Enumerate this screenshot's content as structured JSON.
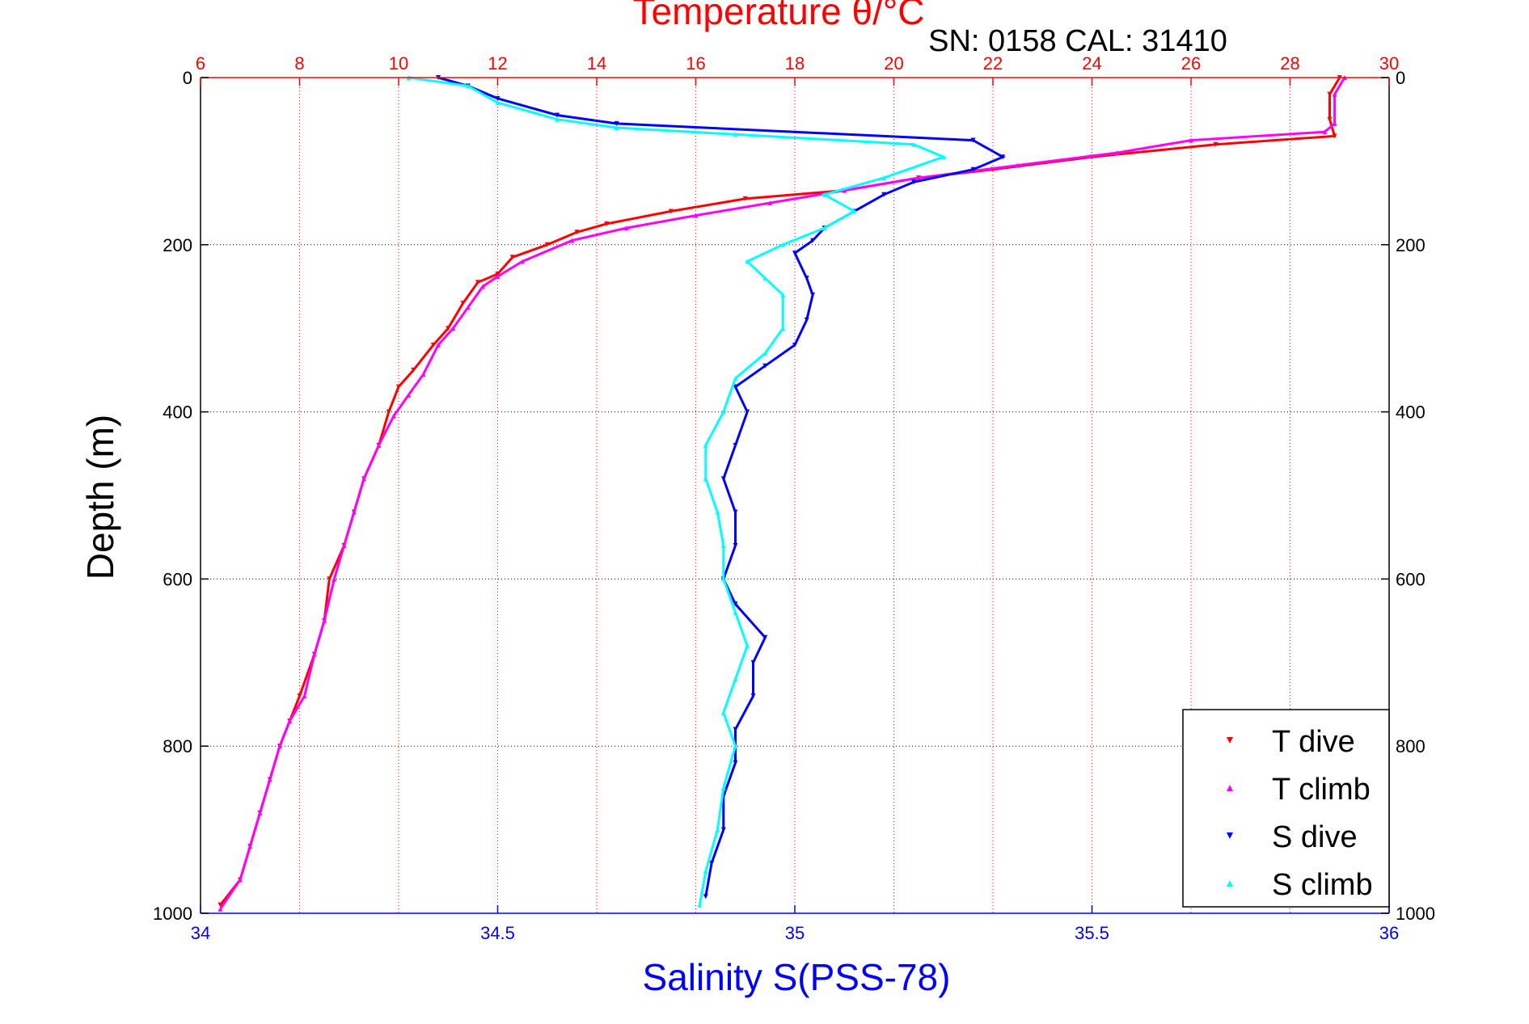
{
  "chart_data": {
    "type": "scatter",
    "title": "Temperature θ/°C",
    "annotation": "SN: 0158  CAL: 31410",
    "ylabel": "Depth (m)",
    "xlabel_bottom": "Salinity S(PSS-78)",
    "xlabel_top": "Temperature θ/°C",
    "ylim": [
      1000,
      0
    ],
    "y_ticks": [
      "0",
      "200",
      "400",
      "600",
      "800",
      "1000"
    ],
    "y_tick_values": [
      0,
      200,
      400,
      600,
      800,
      1000
    ],
    "x_bottom": {
      "label": "Salinity S(PSS-78)",
      "lim": [
        34,
        36
      ],
      "ticks": [
        "34",
        "34.5",
        "35",
        "35.5",
        "36"
      ],
      "tick_values": [
        34,
        34.5,
        35,
        35.5,
        36
      ],
      "color": "#0000ff"
    },
    "x_top": {
      "label": "Temperature θ/°C",
      "lim": [
        6,
        30
      ],
      "ticks": [
        "6",
        "8",
        "10",
        "12",
        "14",
        "16",
        "18",
        "20",
        "22",
        "24",
        "26",
        "28",
        "30"
      ],
      "tick_values": [
        6,
        8,
        10,
        12,
        14,
        16,
        18,
        20,
        22,
        24,
        26,
        28,
        30
      ],
      "color": "#ff0000"
    },
    "grid": true,
    "legend_position": "bottom-right",
    "series": [
      {
        "name": "T dive",
        "axis": "temperature",
        "color": "#ff0000",
        "marker": "triangle-down",
        "points": [
          [
            29.0,
            0
          ],
          [
            28.8,
            20
          ],
          [
            28.8,
            50
          ],
          [
            28.9,
            70
          ],
          [
            26.5,
            80
          ],
          [
            24.0,
            95
          ],
          [
            22.0,
            110
          ],
          [
            20.5,
            120
          ],
          [
            19.0,
            135
          ],
          [
            17.0,
            145
          ],
          [
            15.5,
            160
          ],
          [
            14.2,
            175
          ],
          [
            13.6,
            185
          ],
          [
            13.0,
            200
          ],
          [
            12.3,
            215
          ],
          [
            12.0,
            235
          ],
          [
            11.6,
            245
          ],
          [
            11.3,
            270
          ],
          [
            11.0,
            300
          ],
          [
            10.7,
            320
          ],
          [
            10.3,
            350
          ],
          [
            10.0,
            370
          ],
          [
            9.8,
            400
          ],
          [
            9.6,
            440
          ],
          [
            9.3,
            480
          ],
          [
            9.1,
            520
          ],
          [
            8.9,
            560
          ],
          [
            8.6,
            600
          ],
          [
            8.5,
            650
          ],
          [
            8.3,
            690
          ],
          [
            8.0,
            740
          ],
          [
            7.8,
            770
          ],
          [
            7.6,
            800
          ],
          [
            7.4,
            840
          ],
          [
            7.2,
            880
          ],
          [
            7.0,
            920
          ],
          [
            6.8,
            960
          ],
          [
            6.4,
            990
          ]
        ]
      },
      {
        "name": "T climb",
        "axis": "temperature",
        "color": "#ff00ff",
        "marker": "triangle-up",
        "points": [
          [
            29.1,
            0
          ],
          [
            28.9,
            20
          ],
          [
            28.9,
            55
          ],
          [
            28.7,
            65
          ],
          [
            26.0,
            75
          ],
          [
            24.5,
            90
          ],
          [
            22.5,
            105
          ],
          [
            20.5,
            120
          ],
          [
            19.0,
            135
          ],
          [
            17.5,
            150
          ],
          [
            16.0,
            165
          ],
          [
            14.6,
            180
          ],
          [
            13.5,
            195
          ],
          [
            12.5,
            220
          ],
          [
            12.0,
            238
          ],
          [
            11.7,
            250
          ],
          [
            11.4,
            275
          ],
          [
            11.1,
            300
          ],
          [
            10.8,
            320
          ],
          [
            10.5,
            355
          ],
          [
            10.2,
            380
          ],
          [
            9.9,
            405
          ],
          [
            9.6,
            440
          ],
          [
            9.3,
            480
          ],
          [
            9.1,
            520
          ],
          [
            8.9,
            560
          ],
          [
            8.7,
            600
          ],
          [
            8.5,
            650
          ],
          [
            8.3,
            690
          ],
          [
            8.1,
            740
          ],
          [
            7.8,
            770
          ],
          [
            7.6,
            800
          ],
          [
            7.4,
            840
          ],
          [
            7.2,
            880
          ],
          [
            7.0,
            920
          ],
          [
            6.8,
            960
          ],
          [
            6.4,
            995
          ]
        ]
      },
      {
        "name": "S dive",
        "axis": "salinity",
        "color": "#0000ff",
        "marker": "triangle-down",
        "points": [
          [
            34.4,
            0
          ],
          [
            34.45,
            10
          ],
          [
            34.5,
            25
          ],
          [
            34.6,
            45
          ],
          [
            34.7,
            55
          ],
          [
            35.3,
            75
          ],
          [
            35.35,
            95
          ],
          [
            35.3,
            110
          ],
          [
            35.2,
            125
          ],
          [
            35.15,
            140
          ],
          [
            35.1,
            160
          ],
          [
            35.05,
            180
          ],
          [
            35.03,
            195
          ],
          [
            35.0,
            210
          ],
          [
            35.02,
            240
          ],
          [
            35.03,
            260
          ],
          [
            35.02,
            290
          ],
          [
            35.0,
            320
          ],
          [
            34.95,
            345
          ],
          [
            34.9,
            370
          ],
          [
            34.92,
            400
          ],
          [
            34.9,
            440
          ],
          [
            34.88,
            480
          ],
          [
            34.9,
            520
          ],
          [
            34.9,
            560
          ],
          [
            34.88,
            600
          ],
          [
            34.9,
            630
          ],
          [
            34.95,
            670
          ],
          [
            34.93,
            700
          ],
          [
            34.93,
            740
          ],
          [
            34.9,
            780
          ],
          [
            34.9,
            820
          ],
          [
            34.88,
            860
          ],
          [
            34.88,
            900
          ],
          [
            34.86,
            940
          ],
          [
            34.85,
            980
          ]
        ]
      },
      {
        "name": "S climb",
        "axis": "salinity",
        "color": "#00ffff",
        "marker": "triangle-up",
        "points": [
          [
            34.35,
            0
          ],
          [
            34.45,
            10
          ],
          [
            34.5,
            30
          ],
          [
            34.6,
            50
          ],
          [
            34.7,
            60
          ],
          [
            34.9,
            68
          ],
          [
            35.2,
            80
          ],
          [
            35.25,
            95
          ],
          [
            35.15,
            120
          ],
          [
            35.05,
            140
          ],
          [
            35.1,
            160
          ],
          [
            35.05,
            180
          ],
          [
            34.98,
            200
          ],
          [
            34.92,
            220
          ],
          [
            34.95,
            240
          ],
          [
            34.98,
            260
          ],
          [
            34.98,
            300
          ],
          [
            34.95,
            330
          ],
          [
            34.9,
            360
          ],
          [
            34.88,
            400
          ],
          [
            34.85,
            440
          ],
          [
            34.85,
            480
          ],
          [
            34.87,
            520
          ],
          [
            34.88,
            560
          ],
          [
            34.88,
            600
          ],
          [
            34.9,
            640
          ],
          [
            34.92,
            680
          ],
          [
            34.9,
            720
          ],
          [
            34.88,
            760
          ],
          [
            34.9,
            800
          ],
          [
            34.88,
            850
          ],
          [
            34.87,
            900
          ],
          [
            34.85,
            950
          ],
          [
            34.84,
            990
          ]
        ]
      }
    ],
    "legend": [
      "T dive",
      "T climb",
      "S dive",
      "S climb"
    ]
  }
}
